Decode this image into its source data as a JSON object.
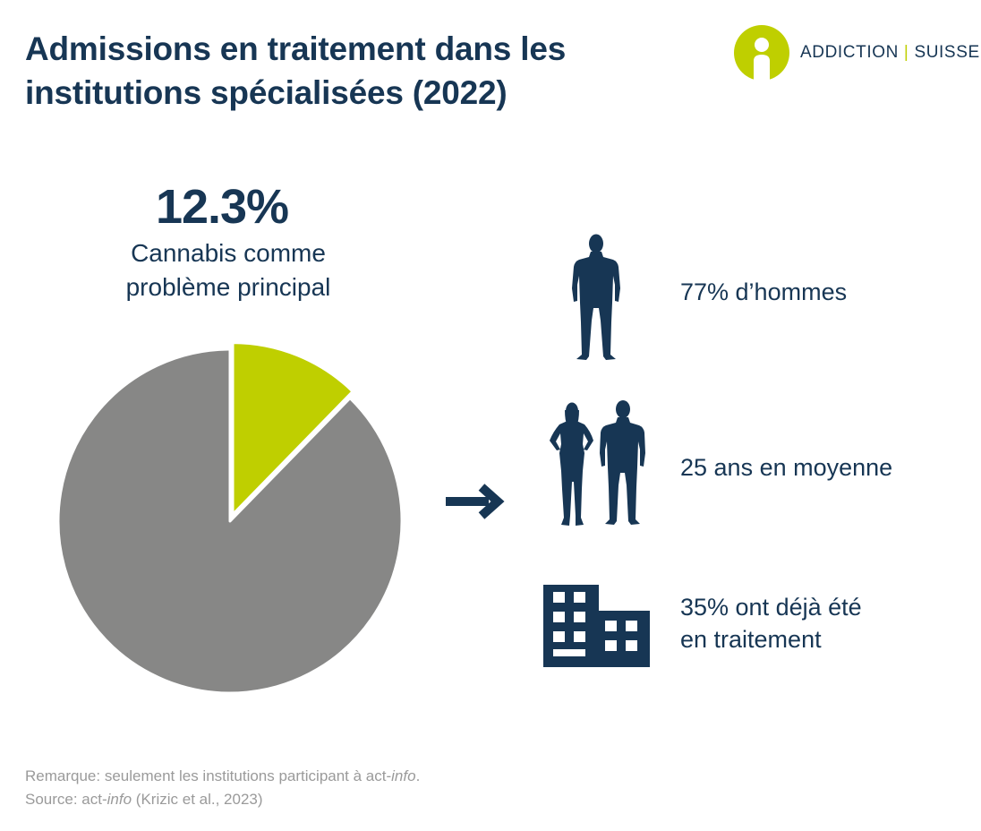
{
  "title": "Admissions en traitement dans les institutions spécialisées (2022)",
  "logo": {
    "left": "ADDICTION",
    "separator": "|",
    "right": "SUISSE"
  },
  "headline": {
    "value": "12.3%",
    "label_line1": "Cannabis comme",
    "label_line2": "problème principal"
  },
  "facts": [
    {
      "icon": "man-silhouette-icon",
      "text": "77% d’hommes"
    },
    {
      "icon": "woman-and-man-silhouette-icon",
      "text": "25 ans en moyenne"
    },
    {
      "icon": "building-icon",
      "line1": "35% ont déjà été",
      "line2": "en traitement"
    }
  ],
  "note": {
    "remark_prefix": "Remarque: seulement les institutions participant à act-",
    "remark_italic": "info",
    "remark_suffix": ".",
    "source_prefix": "Source: act-",
    "source_italic": "info",
    "source_suffix": " (Krizic et al., 2023)"
  },
  "colors": {
    "navy": "#173654",
    "lime": "#bfcf00",
    "grey": "#878786"
  },
  "chart_data": {
    "type": "pie",
    "slices": [
      {
        "label": "Cannabis comme problème principal",
        "value": 12.3,
        "color": "#bfcf00",
        "exploded": true
      },
      {
        "label": "",
        "value": 87.7,
        "color": "#878786",
        "exploded": false
      }
    ]
  }
}
